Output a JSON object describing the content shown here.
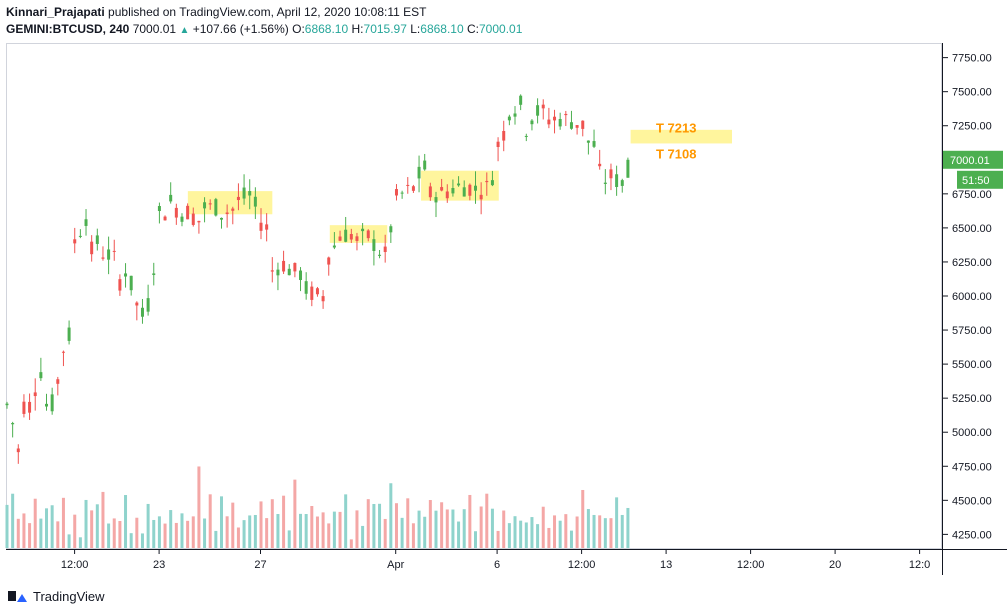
{
  "header": {
    "author": "Kinnari_Prajapati",
    "published_text": "published on TradingView.com, April 12, 2020 10:08:11 EST",
    "symbol": "GEMINI:BTCUSD, 240",
    "last": "7000.01",
    "change": "+107.66 (+1.56%)",
    "o_label": "O:",
    "o_value": "6868.10",
    "h_label": "H:",
    "h_value": "7015.97",
    "l_label": "L:",
    "l_value": "6868.10",
    "c_label": "C:",
    "c_value": "7000.01"
  },
  "footer": {
    "brand": "TradingView"
  },
  "colors": {
    "up": "#26a69a",
    "down": "#ef5350",
    "up_candle": "#4caf50",
    "highlight": "#fff59d",
    "annotation": "#ff9800",
    "price_tag": "#4caf50"
  },
  "chart_data": {
    "type": "candlestick",
    "title": "",
    "xlabel": "",
    "ylabel": "",
    "ylim": [
      4150,
      7850
    ],
    "y_ticks": [
      4250,
      4500,
      4750,
      5000,
      5250,
      5500,
      5750,
      6000,
      6250,
      6500,
      6750,
      7000,
      7250,
      7500,
      7750
    ],
    "y_tick_labels": [
      "4250.00",
      "4500.00",
      "4750.00",
      "5000.00",
      "5250.00",
      "5500.00",
      "5750.00",
      "6000.00",
      "6250.00",
      "6500.00",
      "6750.00",
      "7000.00",
      "7250.00",
      "7500.00",
      "7750.00"
    ],
    "x_range_days": [
      0,
      25.6
    ],
    "x_ticks": [
      {
        "day": 2.0,
        "label": "12:00"
      },
      {
        "day": 4.5,
        "label": "23"
      },
      {
        "day": 7.5,
        "label": "27"
      },
      {
        "day": 11.5,
        "label": "Apr"
      },
      {
        "day": 14.5,
        "label": "6"
      },
      {
        "day": 17.0,
        "label": "12:00"
      },
      {
        "day": 19.5,
        "label": "13"
      },
      {
        "day": 22.0,
        "label": "12:00"
      },
      {
        "day": 24.5,
        "label": "20"
      },
      {
        "day": 27.0,
        "label": "12:0"
      }
    ],
    "grid": false,
    "current_price": {
      "value": 7000.01,
      "label": "7000.01",
      "countdown": "51:50"
    },
    "candle_anchors": [
      [
        0.0,
        5200,
        5200
      ],
      [
        0.25,
        5000,
        4700
      ],
      [
        0.55,
        5300,
        5100
      ],
      [
        0.85,
        5350,
        5450
      ],
      [
        1.1,
        5450,
        5200
      ],
      [
        1.4,
        5200,
        5300
      ],
      [
        1.65,
        5500,
        5600
      ],
      [
        2.0,
        5800,
        6400
      ],
      [
        2.2,
        6500,
        6750
      ],
      [
        2.4,
        6500,
        6300
      ],
      [
        2.7,
        6400,
        6200
      ],
      [
        3.0,
        6450,
        6300
      ],
      [
        3.3,
        6250,
        6100
      ],
      [
        3.55,
        6200,
        6100
      ],
      [
        3.8,
        6050,
        5950
      ],
      [
        4.0,
        5900,
        5850
      ],
      [
        4.3,
        6000,
        6200
      ],
      [
        4.5,
        6300,
        6600
      ],
      [
        4.8,
        6650,
        6700
      ],
      [
        5.2,
        6600,
        6650
      ],
      [
        5.7,
        6550,
        6650
      ],
      [
        6.3,
        6650,
        6600
      ],
      [
        6.8,
        6650,
        6700
      ],
      [
        7.3,
        6750,
        6650
      ],
      [
        7.5,
        6650,
        6550
      ],
      [
        7.7,
        6500,
        6300
      ],
      [
        7.9,
        6150,
        6200
      ],
      [
        8.3,
        6250,
        6200
      ],
      [
        8.8,
        6150,
        6050
      ],
      [
        9.2,
        6000,
        5900
      ],
      [
        9.5,
        6100,
        6300
      ],
      [
        9.8,
        6400,
        6450
      ],
      [
        10.3,
        6450,
        6400
      ],
      [
        10.8,
        6450,
        6400
      ],
      [
        11.1,
        6300,
        6200
      ],
      [
        11.4,
        6550,
        6700
      ],
      [
        11.7,
        6750,
        6750
      ],
      [
        12.1,
        6800,
        6850
      ],
      [
        12.4,
        6950,
        6750
      ],
      [
        12.8,
        6750,
        6750
      ],
      [
        13.3,
        6800,
        6800
      ],
      [
        13.8,
        6800,
        6780
      ],
      [
        14.3,
        6800,
        6850
      ],
      [
        14.5,
        6950,
        7100
      ],
      [
        14.8,
        7250,
        7350
      ],
      [
        15.2,
        7400,
        7150
      ],
      [
        15.6,
        7350,
        7350
      ],
      [
        16.0,
        7350,
        7300
      ],
      [
        16.5,
        7300,
        7300
      ],
      [
        17.1,
        7250,
        7150
      ],
      [
        17.4,
        7100,
        6950
      ],
      [
        17.7,
        6850,
        6850
      ],
      [
        18.0,
        6900,
        6850
      ],
      [
        18.3,
        6820,
        6850
      ],
      [
        18.5,
        6870,
        7000
      ]
    ],
    "volume_range": [
      0,
      1000
    ],
    "annotations": [
      {
        "text": "T 7213",
        "day": 19.8,
        "value": 7230
      },
      {
        "text": "T 7108",
        "day": 19.8,
        "value": 7040
      }
    ],
    "highlight_zones": [
      {
        "from_day": 5.35,
        "to_day": 7.85,
        "low": 6600,
        "high": 6770
      },
      {
        "from_day": 9.55,
        "to_day": 11.25,
        "low": 6390,
        "high": 6520
      },
      {
        "from_day": 12.25,
        "to_day": 14.55,
        "low": 6700,
        "high": 6920
      },
      {
        "from_day": 18.45,
        "to_day": 21.45,
        "low": 7120,
        "high": 7220
      }
    ]
  }
}
